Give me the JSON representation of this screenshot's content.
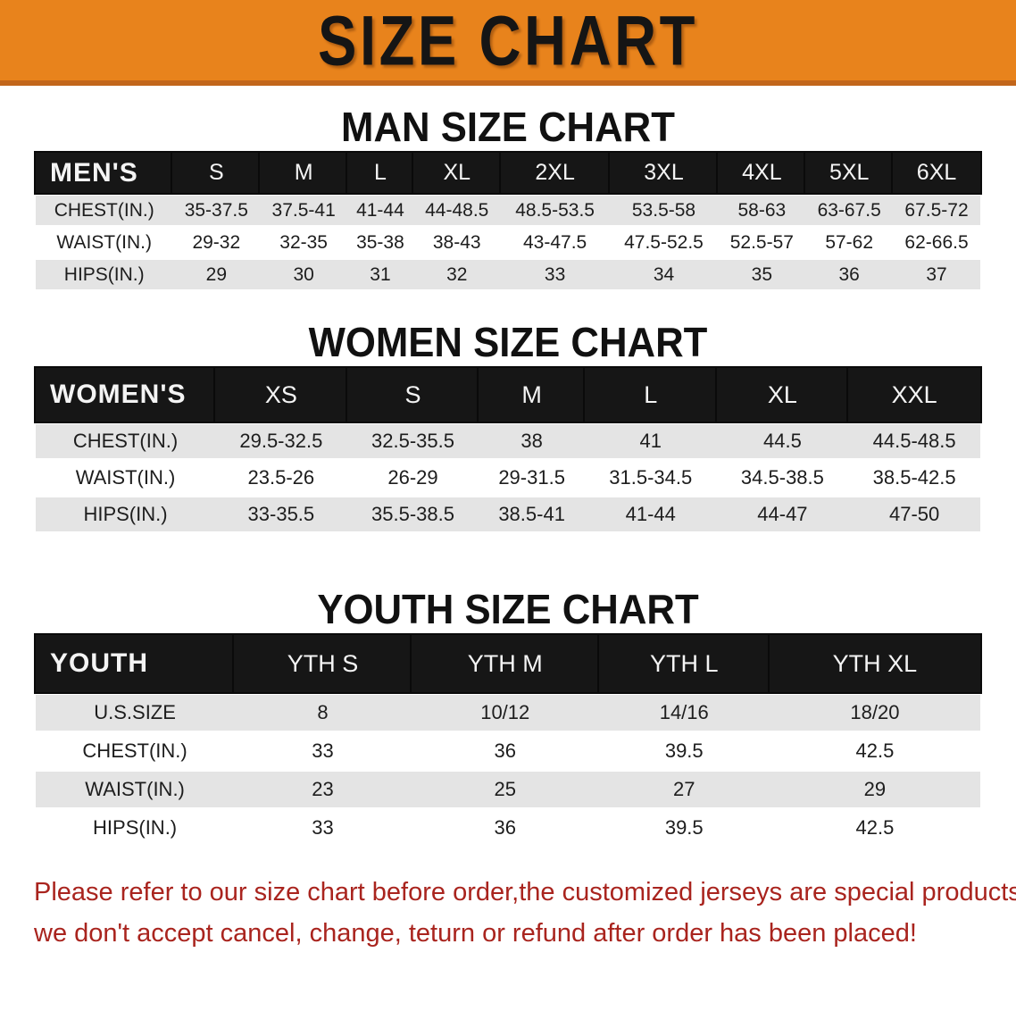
{
  "banner": {
    "title": "SIZE CHART",
    "bg_color": "#E8831C"
  },
  "sections": [
    {
      "heading": "MAN SIZE CHART",
      "table": {
        "header_label": "MEN'S",
        "columns": [
          "S",
          "M",
          "L",
          "XL",
          "2XL",
          "3XL",
          "4XL",
          "5XL",
          "6XL"
        ],
        "rows": [
          {
            "label": "CHEST(IN.)",
            "values": [
              "35-37.5",
              "37.5-41",
              "41-44",
              "44-48.5",
              "48.5-53.5",
              "53.5-58",
              "58-63",
              "63-67.5",
              "67.5-72"
            ]
          },
          {
            "label": "WAIST(IN.)",
            "values": [
              "29-32",
              "32-35",
              "35-38",
              "38-43",
              "43-47.5",
              "47.5-52.5",
              "52.5-57",
              "57-62",
              "62-66.5"
            ]
          },
          {
            "label": "HIPS(IN.)",
            "values": [
              "29",
              "30",
              "31",
              "32",
              "33",
              "34",
              "35",
              "36",
              "37"
            ]
          }
        ]
      }
    },
    {
      "heading": "WOMEN SIZE CHART",
      "table": {
        "header_label": "WOMEN'S",
        "columns": [
          "XS",
          "S",
          "M",
          "L",
          "XL",
          "XXL"
        ],
        "rows": [
          {
            "label": "CHEST(IN.)",
            "values": [
              "29.5-32.5",
              "32.5-35.5",
              "38",
              "41",
              "44.5",
              "44.5-48.5"
            ]
          },
          {
            "label": "WAIST(IN.)",
            "values": [
              "23.5-26",
              "26-29",
              "29-31.5",
              "31.5-34.5",
              "34.5-38.5",
              "38.5-42.5"
            ]
          },
          {
            "label": "HIPS(IN.)",
            "values": [
              "33-35.5",
              "35.5-38.5",
              "38.5-41",
              "41-44",
              "44-47",
              "47-50"
            ]
          }
        ]
      }
    },
    {
      "heading": "YOUTH SIZE CHART",
      "table": {
        "header_label": "YOUTH",
        "columns": [
          "YTH S",
          "YTH M",
          "YTH L",
          "YTH XL"
        ],
        "rows": [
          {
            "label": "U.S.SIZE",
            "values": [
              "8",
              "10/12",
              "14/16",
              "18/20"
            ]
          },
          {
            "label": "CHEST(IN.)",
            "values": [
              "33",
              "36",
              "39.5",
              "42.5"
            ]
          },
          {
            "label": "WAIST(IN.)",
            "values": [
              "23",
              "25",
              "27",
              "29"
            ]
          },
          {
            "label": "HIPS(IN.)",
            "values": [
              "33",
              "36",
              "39.5",
              "42.5"
            ]
          }
        ]
      }
    }
  ],
  "disclaimer": {
    "line1": "Please refer to our size chart before order,the customized jerseys are special products,",
    "line2": "we don't accept cancel, change, teturn or refund after order has been placed!",
    "color": "#A9241E"
  }
}
